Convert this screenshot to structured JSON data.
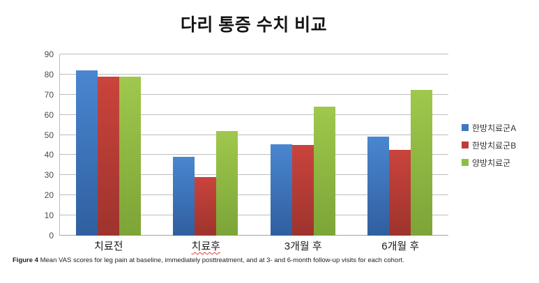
{
  "title": "다리 통증 수치 비교",
  "caption": {
    "prefix": "Figure 4",
    "text": " Mean VAS scores for leg pain at baseline, immediately posttreatment, and at 3- and 6-month follow-up visits for each cohort."
  },
  "chart_data": {
    "type": "bar",
    "title": "다리 통증 수치 비교",
    "categories": [
      "치료전",
      "치료후",
      "3개월 후",
      "6개월 후"
    ],
    "spellcheck_underline": [
      false,
      true,
      false,
      false
    ],
    "series": [
      {
        "name": "한방치료군A",
        "color": "#3E79C0",
        "gradient_top": "#4A86D0",
        "gradient_bottom": "#2F5F9F",
        "values": [
          82,
          39,
          45.5,
          49
        ]
      },
      {
        "name": "한방치료군B",
        "color": "#BE3B35",
        "gradient_top": "#C9443C",
        "gradient_bottom": "#9E332D",
        "values": [
          79,
          29,
          45,
          42.5
        ]
      },
      {
        "name": "양방치료군",
        "color": "#8FBE43",
        "gradient_top": "#9FC84D",
        "gradient_bottom": "#7CA437",
        "values": [
          79,
          52,
          64,
          72.5
        ]
      }
    ],
    "xlabel": "",
    "ylabel": "",
    "ylim": [
      0,
      90
    ],
    "yticks": [
      0,
      10,
      20,
      30,
      40,
      50,
      60,
      70,
      80,
      90
    ],
    "grid": true,
    "legend_position": "right"
  }
}
